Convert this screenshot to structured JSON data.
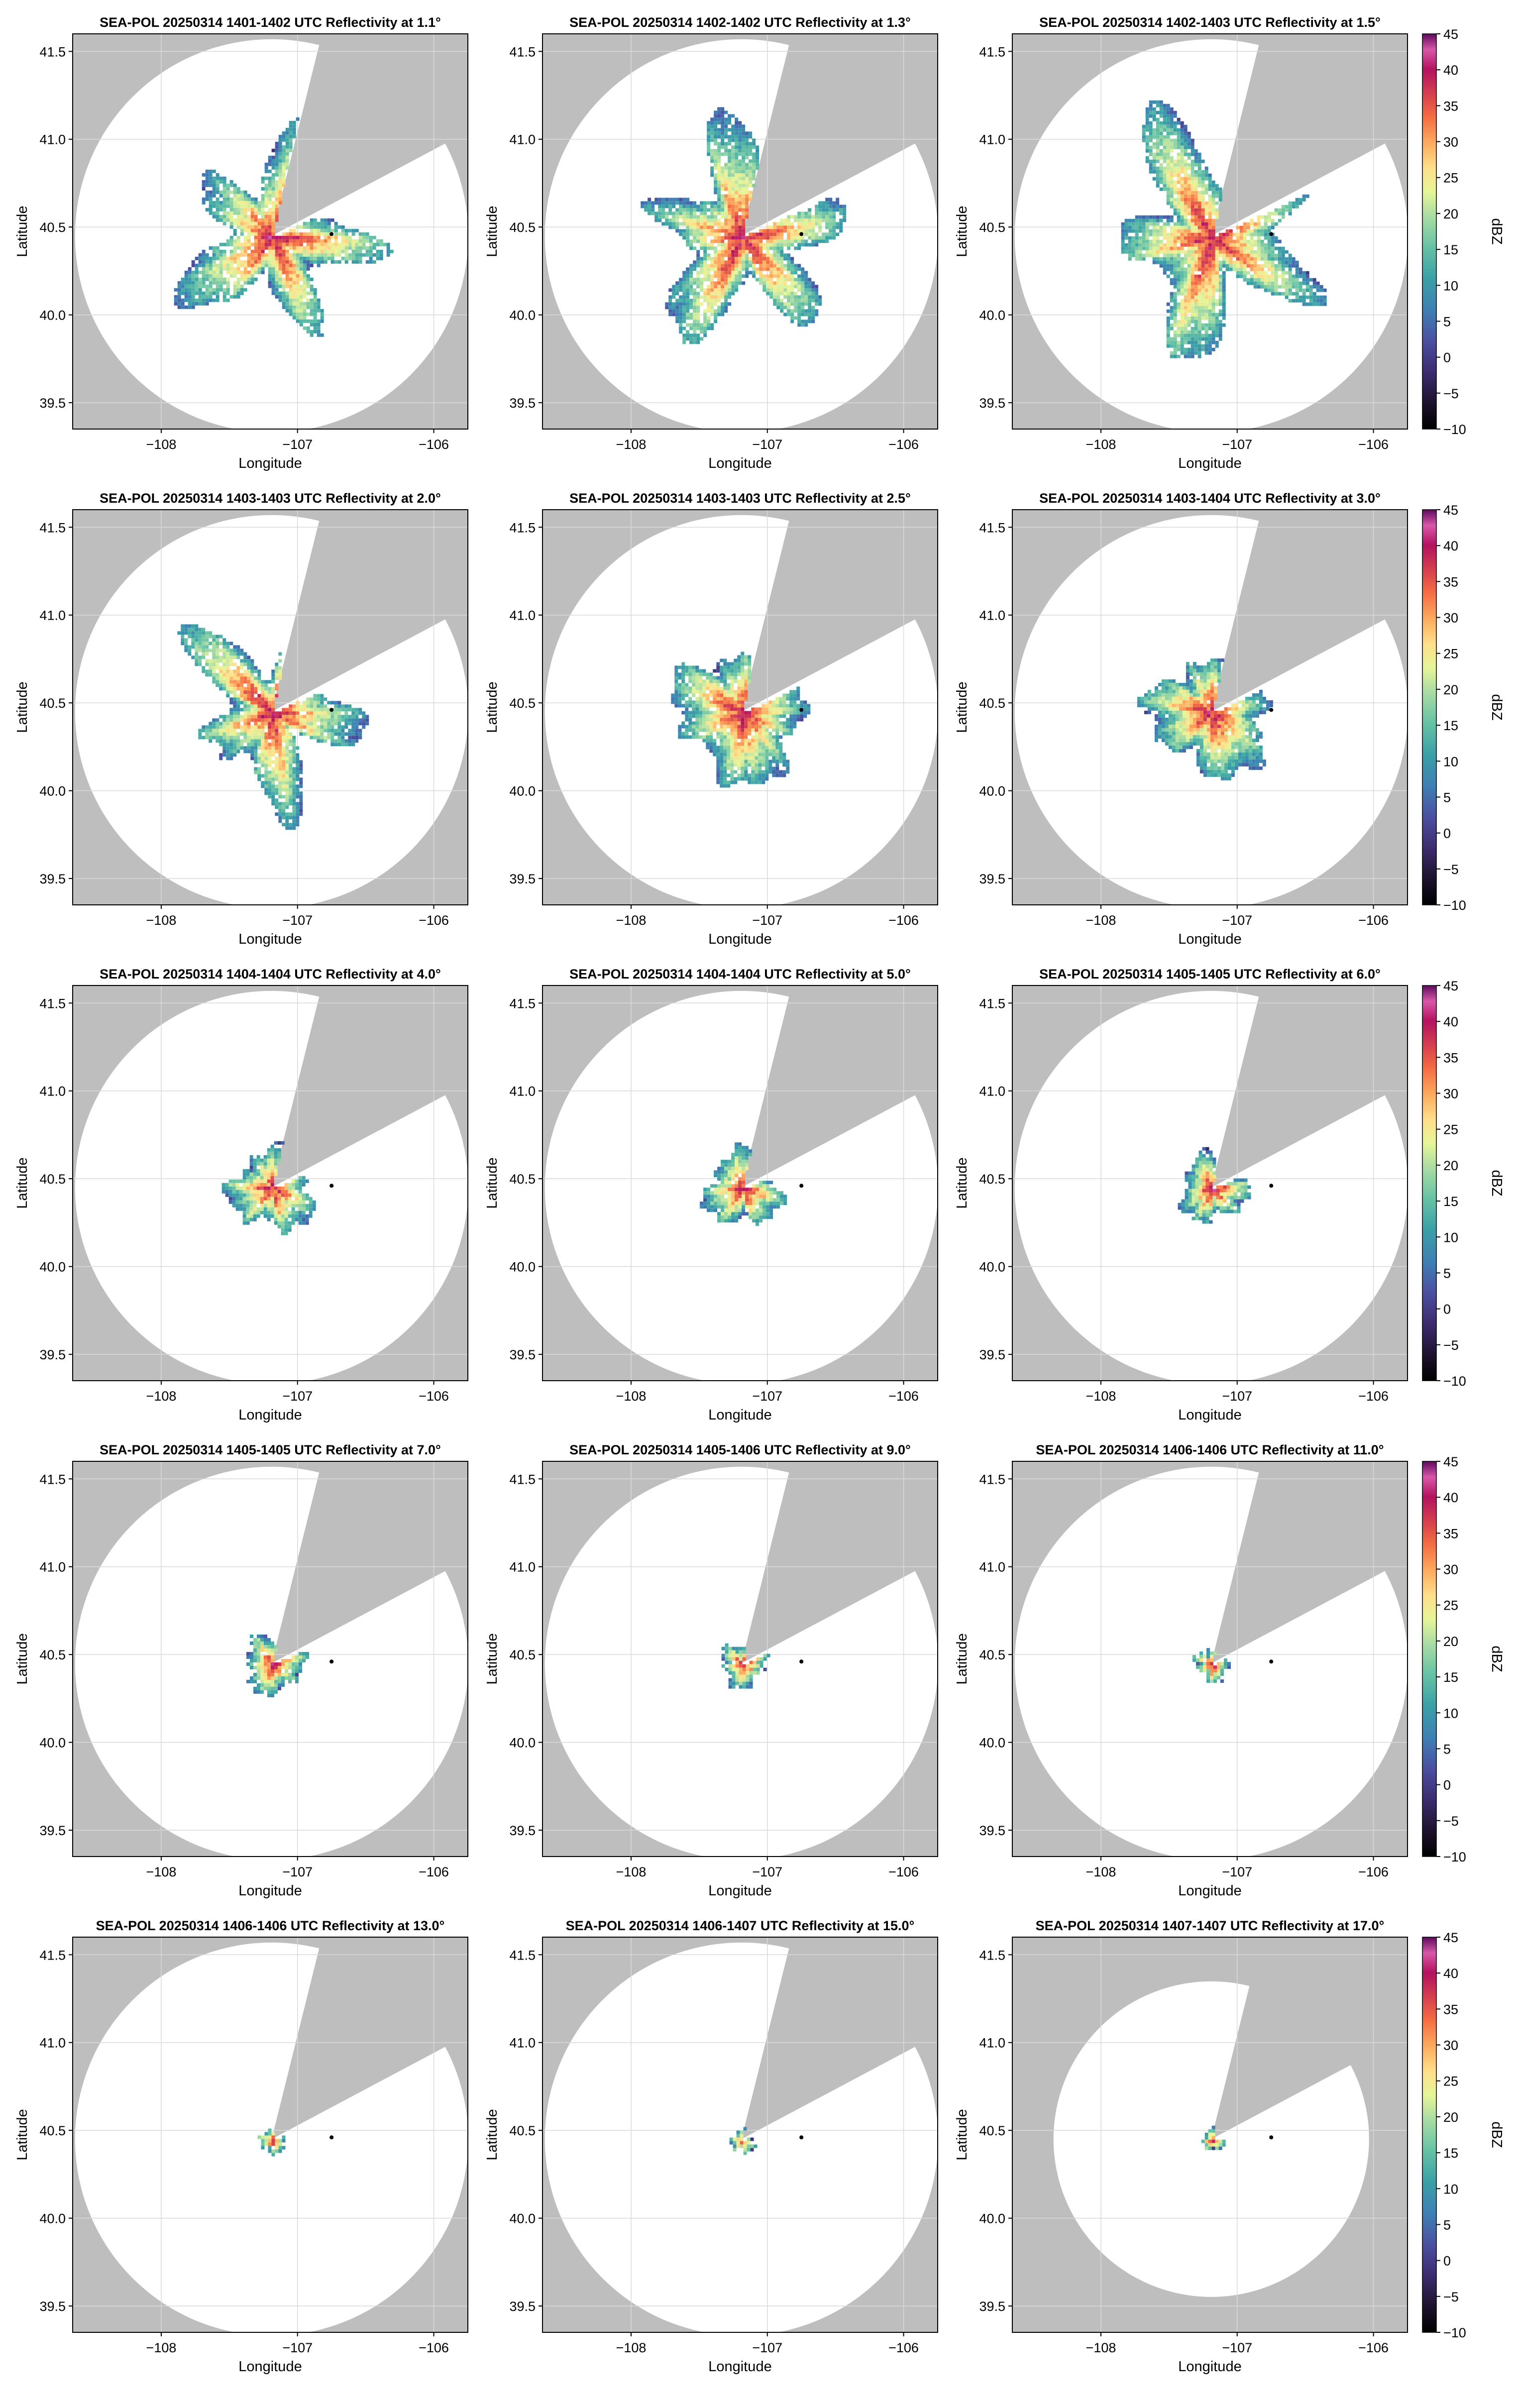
{
  "figure": {
    "colors": {
      "background_mask": "#bebebe",
      "coverage": "#ffffff",
      "grid": "#d9d9d9",
      "site_marker": "#000000"
    },
    "colormap": "Spectral_r",
    "colorbar": {
      "label": "dBZ",
      "ticks": [
        -10,
        -5,
        0,
        5,
        10,
        15,
        20,
        25,
        30,
        35,
        40,
        45
      ],
      "range": [
        -10,
        45
      ]
    }
  },
  "chart_data": [
    {
      "type": "heatmap",
      "title": "SEA-POL 20250314 1401-1402 UTC Reflectivity at 1.1°",
      "xlabel": "Longitude",
      "ylabel": "Latitude",
      "xticks": [
        "−108",
        "−107",
        "−106"
      ],
      "yticks": [
        "39.5",
        "40.0",
        "40.5",
        "41.0",
        "41.5"
      ],
      "xlim": [
        -108.65,
        -105.75
      ],
      "ylim": [
        39.35,
        41.6
      ],
      "elevation_deg": 1.1,
      "echo_radius_deg": 0.75,
      "echo_extent": "wide",
      "radar_lon": -107.19,
      "radar_lat": 40.45,
      "site_lon": -106.75,
      "site_lat": 40.46,
      "colorbar": false
    },
    {
      "type": "heatmap",
      "title": "SEA-POL 20250314 1402-1402 UTC Reflectivity at 1.3°",
      "xlabel": "Longitude",
      "ylabel": "Latitude",
      "xticks": [
        "−108",
        "−107",
        "−106"
      ],
      "yticks": [
        "39.5",
        "40.0",
        "40.5",
        "41.0",
        "41.5"
      ],
      "xlim": [
        -108.65,
        -105.75
      ],
      "ylim": [
        39.35,
        41.6
      ],
      "elevation_deg": 1.3,
      "echo_radius_deg": 0.8,
      "echo_extent": "wide",
      "radar_lon": -107.19,
      "radar_lat": 40.45,
      "site_lon": -106.75,
      "site_lat": 40.46,
      "colorbar": false
    },
    {
      "type": "heatmap",
      "title": "SEA-POL 20250314 1402-1403 UTC Reflectivity at 1.5°",
      "xlabel": "Longitude",
      "ylabel": "Latitude",
      "xticks": [
        "−108",
        "−107",
        "−106"
      ],
      "yticks": [
        "39.5",
        "40.0",
        "40.5",
        "41.0",
        "41.5"
      ],
      "xlim": [
        -108.65,
        -105.75
      ],
      "ylim": [
        39.35,
        41.6
      ],
      "elevation_deg": 1.5,
      "echo_radius_deg": 0.85,
      "echo_extent": "wide",
      "radar_lon": -107.19,
      "radar_lat": 40.45,
      "site_lon": -106.75,
      "site_lat": 40.46,
      "colorbar": true
    },
    {
      "type": "heatmap",
      "title": "SEA-POL 20250314 1403-1403 UTC Reflectivity at 2.0°",
      "xlabel": "Longitude",
      "ylabel": "Latitude",
      "xticks": [
        "−108",
        "−107",
        "−106"
      ],
      "yticks": [
        "39.5",
        "40.0",
        "40.5",
        "41.0",
        "41.5"
      ],
      "xlim": [
        -108.65,
        -105.75
      ],
      "ylim": [
        39.35,
        41.6
      ],
      "elevation_deg": 2.0,
      "echo_radius_deg": 0.7,
      "echo_extent": "wide",
      "radar_lon": -107.19,
      "radar_lat": 40.45,
      "site_lon": -106.75,
      "site_lat": 40.46,
      "colorbar": false
    },
    {
      "type": "heatmap",
      "title": "SEA-POL 20250314 1403-1403 UTC Reflectivity at 2.5°",
      "xlabel": "Longitude",
      "ylabel": "Latitude",
      "xticks": [
        "−108",
        "−107",
        "−106"
      ],
      "yticks": [
        "39.5",
        "40.0",
        "40.5",
        "41.0",
        "41.5"
      ],
      "xlim": [
        -108.65,
        -105.75
      ],
      "ylim": [
        39.35,
        41.6
      ],
      "elevation_deg": 2.5,
      "echo_radius_deg": 0.6,
      "echo_extent": "mid",
      "radar_lon": -107.19,
      "radar_lat": 40.45,
      "site_lon": -106.75,
      "site_lat": 40.46,
      "colorbar": false
    },
    {
      "type": "heatmap",
      "title": "SEA-POL 20250314 1403-1404 UTC Reflectivity at 3.0°",
      "xlabel": "Longitude",
      "ylabel": "Latitude",
      "xticks": [
        "−108",
        "−107",
        "−106"
      ],
      "yticks": [
        "39.5",
        "40.0",
        "40.5",
        "41.0",
        "41.5"
      ],
      "xlim": [
        -108.65,
        -105.75
      ],
      "ylim": [
        39.35,
        41.6
      ],
      "elevation_deg": 3.0,
      "echo_radius_deg": 0.55,
      "echo_extent": "mid",
      "radar_lon": -107.19,
      "radar_lat": 40.45,
      "site_lon": -106.75,
      "site_lat": 40.46,
      "colorbar": true
    },
    {
      "type": "heatmap",
      "title": "SEA-POL 20250314 1404-1404 UTC Reflectivity at 4.0°",
      "xlabel": "Longitude",
      "ylabel": "Latitude",
      "xticks": [
        "−108",
        "−107",
        "−106"
      ],
      "yticks": [
        "39.5",
        "40.0",
        "40.5",
        "41.0",
        "41.5"
      ],
      "xlim": [
        -108.65,
        -105.75
      ],
      "ylim": [
        39.35,
        41.6
      ],
      "elevation_deg": 4.0,
      "echo_radius_deg": 0.38,
      "echo_extent": "compact",
      "radar_lon": -107.19,
      "radar_lat": 40.45,
      "site_lon": -106.75,
      "site_lat": 40.46,
      "colorbar": false
    },
    {
      "type": "heatmap",
      "title": "SEA-POL 20250314 1404-1404 UTC Reflectivity at 5.0°",
      "xlabel": "Longitude",
      "ylabel": "Latitude",
      "xticks": [
        "−108",
        "−107",
        "−106"
      ],
      "yticks": [
        "39.5",
        "40.0",
        "40.5",
        "41.0",
        "41.5"
      ],
      "xlim": [
        -108.65,
        -105.75
      ],
      "ylim": [
        39.35,
        41.6
      ],
      "elevation_deg": 5.0,
      "echo_radius_deg": 0.34,
      "echo_extent": "compact",
      "radar_lon": -107.19,
      "radar_lat": 40.45,
      "site_lon": -106.75,
      "site_lat": 40.46,
      "colorbar": false
    },
    {
      "type": "heatmap",
      "title": "SEA-POL 20250314 1405-1405 UTC Reflectivity at 6.0°",
      "xlabel": "Longitude",
      "ylabel": "Latitude",
      "xticks": [
        "−108",
        "−107",
        "−106"
      ],
      "yticks": [
        "39.5",
        "40.0",
        "40.5",
        "41.0",
        "41.5"
      ],
      "xlim": [
        -108.65,
        -105.75
      ],
      "ylim": [
        39.35,
        41.6
      ],
      "elevation_deg": 6.0,
      "echo_radius_deg": 0.3,
      "echo_extent": "compact",
      "radar_lon": -107.19,
      "radar_lat": 40.45,
      "site_lon": -106.75,
      "site_lat": 40.46,
      "colorbar": true
    },
    {
      "type": "heatmap",
      "title": "SEA-POL 20250314 1405-1405 UTC Reflectivity at 7.0°",
      "xlabel": "Longitude",
      "ylabel": "Latitude",
      "xticks": [
        "−108",
        "−107",
        "−106"
      ],
      "yticks": [
        "39.5",
        "40.0",
        "40.5",
        "41.0",
        "41.5"
      ],
      "xlim": [
        -108.65,
        -105.75
      ],
      "ylim": [
        39.35,
        41.6
      ],
      "elevation_deg": 7.0,
      "echo_radius_deg": 0.26,
      "echo_extent": "small",
      "radar_lon": -107.19,
      "radar_lat": 40.45,
      "site_lon": -106.75,
      "site_lat": 40.46,
      "colorbar": false
    },
    {
      "type": "heatmap",
      "title": "SEA-POL 20250314 1405-1406 UTC Reflectivity at 9.0°",
      "xlabel": "Longitude",
      "ylabel": "Latitude",
      "xticks": [
        "−108",
        "−107",
        "−106"
      ],
      "yticks": [
        "39.5",
        "40.0",
        "40.5",
        "41.0",
        "41.5"
      ],
      "xlim": [
        -108.65,
        -105.75
      ],
      "ylim": [
        39.35,
        41.6
      ],
      "elevation_deg": 9.0,
      "echo_radius_deg": 0.2,
      "echo_extent": "small",
      "radar_lon": -107.19,
      "radar_lat": 40.45,
      "site_lon": -106.75,
      "site_lat": 40.46,
      "colorbar": false
    },
    {
      "type": "heatmap",
      "title": "SEA-POL 20250314 1406-1406 UTC Reflectivity at 11.0°",
      "xlabel": "Longitude",
      "ylabel": "Latitude",
      "xticks": [
        "−108",
        "−107",
        "−106"
      ],
      "yticks": [
        "39.5",
        "40.0",
        "40.5",
        "41.0",
        "41.5"
      ],
      "xlim": [
        -108.65,
        -105.75
      ],
      "ylim": [
        39.35,
        41.6
      ],
      "elevation_deg": 11.0,
      "echo_radius_deg": 0.16,
      "echo_extent": "small",
      "radar_lon": -107.19,
      "radar_lat": 40.45,
      "site_lon": -106.75,
      "site_lat": 40.46,
      "colorbar": true
    },
    {
      "type": "heatmap",
      "title": "SEA-POL 20250314 1406-1406 UTC Reflectivity at 13.0°",
      "xlabel": "Longitude",
      "ylabel": "Latitude",
      "xticks": [
        "−108",
        "−107",
        "−106"
      ],
      "yticks": [
        "39.5",
        "40.0",
        "40.5",
        "41.0",
        "41.5"
      ],
      "xlim": [
        -108.65,
        -105.75
      ],
      "ylim": [
        39.35,
        41.6
      ],
      "elevation_deg": 13.0,
      "echo_radius_deg": 0.12,
      "echo_extent": "tiny",
      "radar_lon": -107.19,
      "radar_lat": 40.45,
      "site_lon": -106.75,
      "site_lat": 40.46,
      "colorbar": false
    },
    {
      "type": "heatmap",
      "title": "SEA-POL 20250314 1406-1407 UTC Reflectivity at 15.0°",
      "xlabel": "Longitude",
      "ylabel": "Latitude",
      "xticks": [
        "−108",
        "−107",
        "−106"
      ],
      "yticks": [
        "39.5",
        "40.0",
        "40.5",
        "41.0",
        "41.5"
      ],
      "xlim": [
        -108.65,
        -105.75
      ],
      "ylim": [
        39.35,
        41.6
      ],
      "elevation_deg": 15.0,
      "echo_radius_deg": 0.11,
      "echo_extent": "tiny",
      "radar_lon": -107.19,
      "radar_lat": 40.45,
      "site_lon": -106.75,
      "site_lat": 40.46,
      "colorbar": false
    },
    {
      "type": "heatmap",
      "title": "SEA-POL 20250314 1407-1407 UTC Reflectivity at 17.0°",
      "xlabel": "Longitude",
      "ylabel": "Latitude",
      "xticks": [
        "−108",
        "−107",
        "−106"
      ],
      "yticks": [
        "39.5",
        "40.0",
        "40.5",
        "41.0",
        "41.5"
      ],
      "xlim": [
        -108.65,
        -105.75
      ],
      "ylim": [
        39.35,
        41.6
      ],
      "elevation_deg": 17.0,
      "echo_radius_deg": 0.1,
      "echo_extent": "tiny",
      "radar_lon": -107.19,
      "radar_lat": 40.45,
      "site_lon": -106.75,
      "site_lat": 40.46,
      "colorbar": true
    }
  ]
}
